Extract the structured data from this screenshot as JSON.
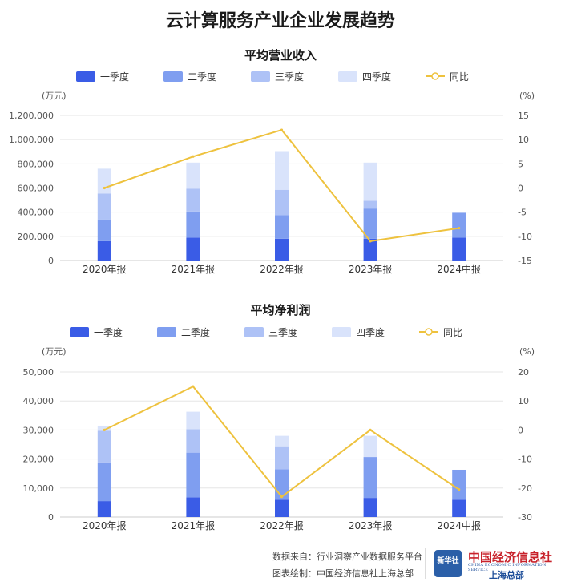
{
  "page": {
    "title": "云计算服务产业企业发展趋势"
  },
  "legend_labels": [
    "一季度",
    "二季度",
    "三季度",
    "四季度",
    "同比"
  ],
  "colors": {
    "q1": "#3a5ce6",
    "q2": "#7f9ef0",
    "q3": "#aec2f6",
    "q4": "#d9e3fb",
    "yoy": "#eec23e",
    "grid": "#e6e6e6"
  },
  "footer": {
    "source": "数据来自：行业洞察产业数据服务平台",
    "drawn_by": "图表绘制：中国经济信息社上海总部",
    "logo_badge": "新华社",
    "logo_name": "中国经济信息社",
    "logo_english": "CHINA ECONOMIC INFORMATION SERVICE",
    "logo_sub": "上海总部"
  },
  "chart_data": [
    {
      "type": "bar",
      "stacked": true,
      "title": "平均营业收入",
      "ylabel": "(万元)",
      "y2label": "(%)",
      "ylim": [
        0,
        1200000
      ],
      "yticks": [
        "0",
        "200,000",
        "400,000",
        "600,000",
        "800,000",
        "1,000,000",
        "1,200,000"
      ],
      "y2lim": [
        -15,
        15
      ],
      "y2ticks": [
        "-15",
        "-10",
        "-5",
        "0",
        "5",
        "10",
        "15"
      ],
      "categories": [
        "2020年报",
        "2021年报",
        "2022年报",
        "2023年报",
        "2024中报"
      ],
      "series": [
        {
          "name": "一季度",
          "values": [
            160000,
            190000,
            180000,
            180000,
            190000
          ]
        },
        {
          "name": "二季度",
          "values": [
            180000,
            215000,
            195000,
            250000,
            205000
          ]
        },
        {
          "name": "三季度",
          "values": [
            215000,
            190000,
            210000,
            65000,
            0
          ]
        },
        {
          "name": "四季度",
          "values": [
            205000,
            215000,
            320000,
            315000,
            0
          ]
        }
      ],
      "line": {
        "name": "同比",
        "values": [
          0,
          6.5,
          12,
          -11,
          -8.3
        ]
      },
      "grid": true,
      "legend_position": "top"
    },
    {
      "type": "bar",
      "stacked": true,
      "title": "平均净利润",
      "ylabel": "(万元)",
      "y2label": "(%)",
      "ylim": [
        0,
        50000
      ],
      "yticks": [
        "0",
        "10,000",
        "20,000",
        "30,000",
        "40,000",
        "50,000"
      ],
      "y2lim": [
        -30,
        20
      ],
      "y2ticks": [
        "-30",
        "-20",
        "-10",
        "0",
        "10",
        "20"
      ],
      "categories": [
        "2020年报",
        "2021年报",
        "2022年报",
        "2023年报",
        "2024中报"
      ],
      "series": [
        {
          "name": "一季度",
          "values": [
            5500,
            6800,
            6000,
            6600,
            6000
          ]
        },
        {
          "name": "二季度",
          "values": [
            13300,
            15400,
            10500,
            14100,
            10300
          ]
        },
        {
          "name": "三季度",
          "values": [
            10900,
            8100,
            7900,
            0,
            0
          ]
        },
        {
          "name": "四季度",
          "values": [
            1800,
            6000,
            3600,
            7300,
            0
          ]
        }
      ],
      "line": {
        "name": "同比",
        "values": [
          0,
          15,
          -23,
          0,
          -20.5
        ]
      },
      "grid": true,
      "legend_position": "top"
    }
  ]
}
